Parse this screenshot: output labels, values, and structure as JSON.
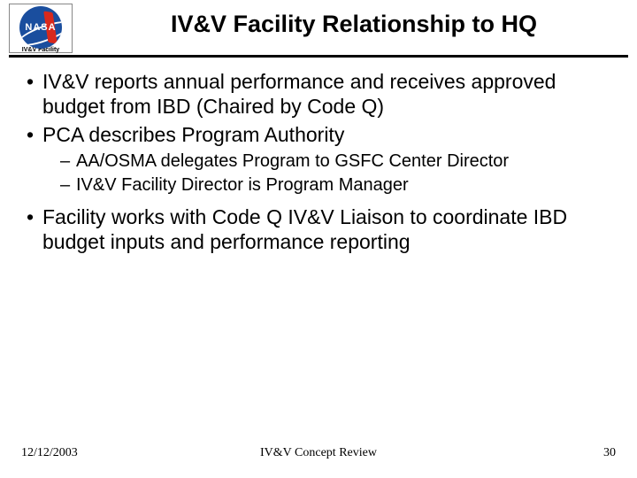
{
  "logo": {
    "brand": "NASA",
    "caption": "IV&V Facility"
  },
  "title": "IV&V Facility Relationship to HQ",
  "bullets": {
    "b1": "IV&V reports annual performance and receives approved budget from IBD (Chaired by Code Q)",
    "b2": "PCA describes Program Authority",
    "b2a": "AA/OSMA delegates Program to GSFC Center Director",
    "b2b": "IV&V Facility Director is Program Manager",
    "b3": "Facility works with Code Q IV&V Liaison to coordinate IBD budget inputs and performance reporting"
  },
  "footer": {
    "date": "12/12/2003",
    "center": "IV&V Concept Review",
    "page": "30"
  }
}
